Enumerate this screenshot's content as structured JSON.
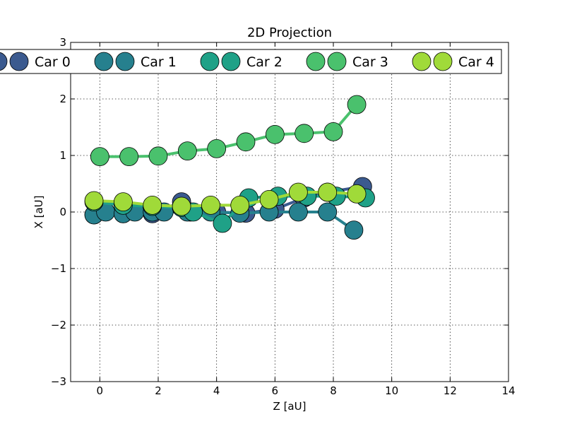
{
  "chart_data": {
    "type": "line",
    "title": "2D Projection",
    "xlabel": "Z [aU]",
    "ylabel": "X [aU]",
    "xlim": [
      -1,
      14
    ],
    "ylim": [
      -3,
      3
    ],
    "xticks": [
      0,
      2,
      4,
      6,
      8,
      10,
      12,
      14
    ],
    "yticks": [
      -3,
      -2,
      -1,
      0,
      1,
      2,
      3
    ],
    "xtick_labels": [
      "0",
      "2",
      "4",
      "6",
      "8",
      "10",
      "12",
      "14"
    ],
    "ytick_labels": [
      "−3",
      "−2",
      "−1",
      "0",
      "1",
      "2",
      "3"
    ],
    "grid": true,
    "legend_position": "top",
    "series": [
      {
        "name": "Car 0",
        "color": "#3b5a8f",
        "x": [
          -0.2,
          0.8,
          1.8,
          2.8,
          3.1,
          4.0,
          5.0,
          6.0,
          7.0,
          7.8,
          9.0
        ],
        "y": [
          -0.05,
          -0.03,
          -0.03,
          0.18,
          0.0,
          0.0,
          -0.02,
          0.05,
          0.25,
          0.35,
          0.45
        ]
      },
      {
        "name": "Car 1",
        "color": "#26808e",
        "x": [
          -0.2,
          0.2,
          0.8,
          1.2,
          1.8,
          2.2,
          3.0,
          3.8,
          4.8,
          5.8,
          6.8,
          7.8,
          8.7
        ],
        "y": [
          -0.05,
          0.0,
          -0.03,
          0.0,
          0.0,
          0.0,
          0.0,
          0.0,
          -0.02,
          0.0,
          0.0,
          0.0,
          -0.32
        ]
      },
      {
        "name": "Car 2",
        "color": "#1fa187",
        "x": [
          -0.2,
          0.8,
          1.8,
          2.8,
          3.2,
          4.2,
          5.1,
          6.1,
          7.1,
          8.1,
          9.1
        ],
        "y": [
          0.18,
          0.12,
          0.1,
          0.08,
          0.0,
          -0.2,
          0.25,
          0.28,
          0.28,
          0.28,
          0.25
        ]
      },
      {
        "name": "Car 3",
        "color": "#4ac16d",
        "x": [
          0.0,
          1.0,
          2.0,
          3.0,
          4.0,
          5.0,
          6.0,
          7.0,
          8.0,
          8.8
        ],
        "y": [
          0.98,
          0.98,
          0.99,
          1.08,
          1.12,
          1.24,
          1.37,
          1.39,
          1.42,
          1.9
        ]
      },
      {
        "name": "Car 4",
        "color": "#a0da39",
        "x": [
          -0.2,
          0.8,
          1.8,
          2.8,
          3.8,
          4.8,
          5.8,
          6.8,
          7.8,
          8.8
        ],
        "y": [
          0.2,
          0.18,
          0.12,
          0.1,
          0.12,
          0.12,
          0.22,
          0.35,
          0.35,
          0.32
        ]
      }
    ]
  }
}
